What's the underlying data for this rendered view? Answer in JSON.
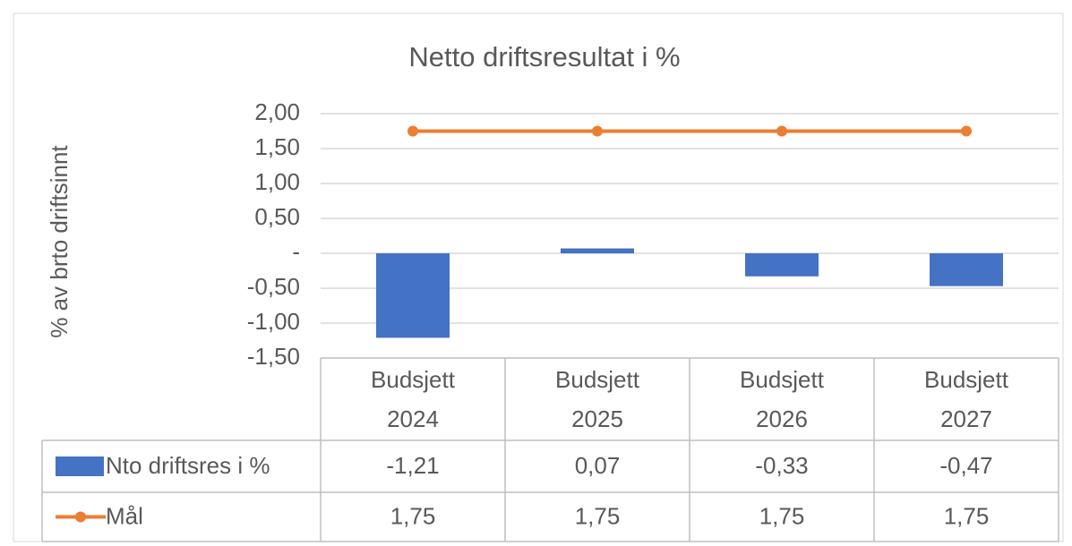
{
  "chart_data": {
    "type": "bar_line_table",
    "title": "Netto driftsresultat i %",
    "y_label": "% av brto driftsinnt",
    "categories": [
      "Budsjett 2024",
      "Budsjett 2025",
      "Budsjett 2026",
      "Budsjett 2027"
    ],
    "series": [
      {
        "name": "Nto driftsres i %",
        "type": "bar",
        "color": "#4472c4",
        "values": [
          -1.21,
          0.07,
          -0.33,
          -0.47
        ],
        "value_labels": [
          "-1,21",
          "0,07",
          "-0,33",
          "-0,47"
        ]
      },
      {
        "name": "Mål",
        "type": "line",
        "color": "#ed7d31",
        "values": [
          1.75,
          1.75,
          1.75,
          1.75
        ],
        "value_labels": [
          "1,75",
          "1,75",
          "1,75",
          "1,75"
        ]
      }
    ],
    "ylim": [
      -1.5,
      2
    ],
    "yticks": [
      {
        "value": -1.5,
        "label": "-1,50"
      },
      {
        "value": -1,
        "label": "-1,00"
      },
      {
        "value": -0.5,
        "label": "-0,50"
      },
      {
        "value": 0,
        "label": "-"
      },
      {
        "value": 0.5,
        "label": "0,50"
      },
      {
        "value": 1,
        "label": "1,00"
      },
      {
        "value": 1.5,
        "label": "1,50"
      },
      {
        "value": 2,
        "label": "2,00"
      }
    ],
    "grid": true
  }
}
